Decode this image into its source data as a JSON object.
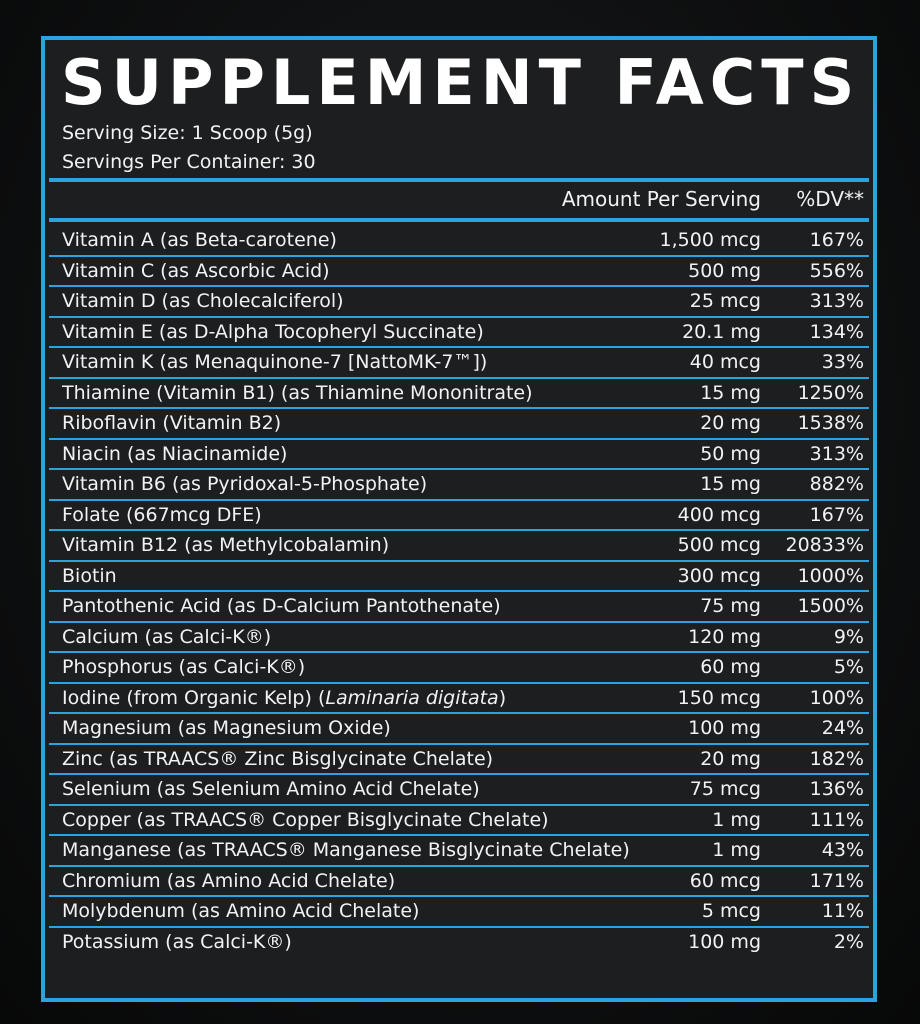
{
  "title": "SUPPLEMENT FACTS",
  "serving_size": "Serving Size: 1 Scoop (5g)",
  "servings_per_container": "Servings Per Container: 30",
  "columns": {
    "amount": "Amount Per Serving",
    "dv": "%DV**"
  },
  "rows": [
    {
      "name": "Vitamin A (as Beta-carotene)",
      "amount": "1,500 mcg",
      "dv": "167%"
    },
    {
      "name": "Vitamin C (as Ascorbic Acid)",
      "amount": "500 mg",
      "dv": "556%"
    },
    {
      "name": "Vitamin D (as Cholecalciferol)",
      "amount": "25 mcg",
      "dv": "313%"
    },
    {
      "name": "Vitamin E (as D-Alpha Tocopheryl Succinate)",
      "amount": "20.1 mg",
      "dv": "134%"
    },
    {
      "name": "Vitamin K (as Menaquinone-7 [NattoMK-7™])",
      "amount": "40 mcg",
      "dv": "33%"
    },
    {
      "name": "Thiamine (Vitamin B1) (as Thiamine Mononitrate)",
      "amount": "15 mg",
      "dv": "1250%"
    },
    {
      "name": "Riboflavin (Vitamin B2)",
      "amount": "20 mg",
      "dv": "1538%"
    },
    {
      "name": "Niacin (as Niacinamide)",
      "amount": "50 mg",
      "dv": "313%"
    },
    {
      "name": "Vitamin B6 (as Pyridoxal-5-Phosphate)",
      "amount": "15 mg",
      "dv": "882%"
    },
    {
      "name": "Folate (667mcg DFE)",
      "amount": "400 mcg",
      "dv": "167%"
    },
    {
      "name": "Vitamin B12 (as Methylcobalamin)",
      "amount": "500 mcg",
      "dv": "20833%"
    },
    {
      "name": "Biotin",
      "amount": "300 mcg",
      "dv": "1000%"
    },
    {
      "name": "Pantothenic Acid (as D-Calcium Pantothenate)",
      "amount": "75 mg",
      "dv": "1500%"
    },
    {
      "name": "Calcium (as Calci-K®)",
      "amount": "120 mg",
      "dv": "9%"
    },
    {
      "name": "Phosphorus (as Calci-K®)",
      "amount": "60 mg",
      "dv": "5%"
    },
    {
      "name": "Iodine (from Organic Kelp) (",
      "name_italic": "Laminaria digitata",
      "name_tail": ")",
      "amount": "150 mcg",
      "dv": "100%"
    },
    {
      "name": "Magnesium (as Magnesium Oxide)",
      "amount": "100 mg",
      "dv": "24%"
    },
    {
      "name": "Zinc (as TRAACS® Zinc Bisglycinate Chelate)",
      "amount": "20 mg",
      "dv": "182%"
    },
    {
      "name": "Selenium (as Selenium Amino Acid Chelate)",
      "amount": "75 mcg",
      "dv": "136%"
    },
    {
      "name": "Copper (as TRAACS® Copper Bisglycinate Chelate)",
      "amount": "1 mg",
      "dv": "111%"
    },
    {
      "name": "Manganese (as TRAACS® Manganese Bisglycinate Chelate)",
      "amount": "1 mg",
      "dv": "43%"
    },
    {
      "name": "Chromium (as Amino Acid Chelate)",
      "amount": "60 mcg",
      "dv": "171%"
    },
    {
      "name": "Molybdenum (as Amino Acid Chelate)",
      "amount": "5 mcg",
      "dv": "11%"
    },
    {
      "name": "Potassium (as Calci-K®)",
      "amount": "100 mg",
      "dv": "2%"
    }
  ],
  "colors": {
    "border": "#2aa3df",
    "panel": "#1d1e20",
    "text": "#f2f2f2"
  }
}
